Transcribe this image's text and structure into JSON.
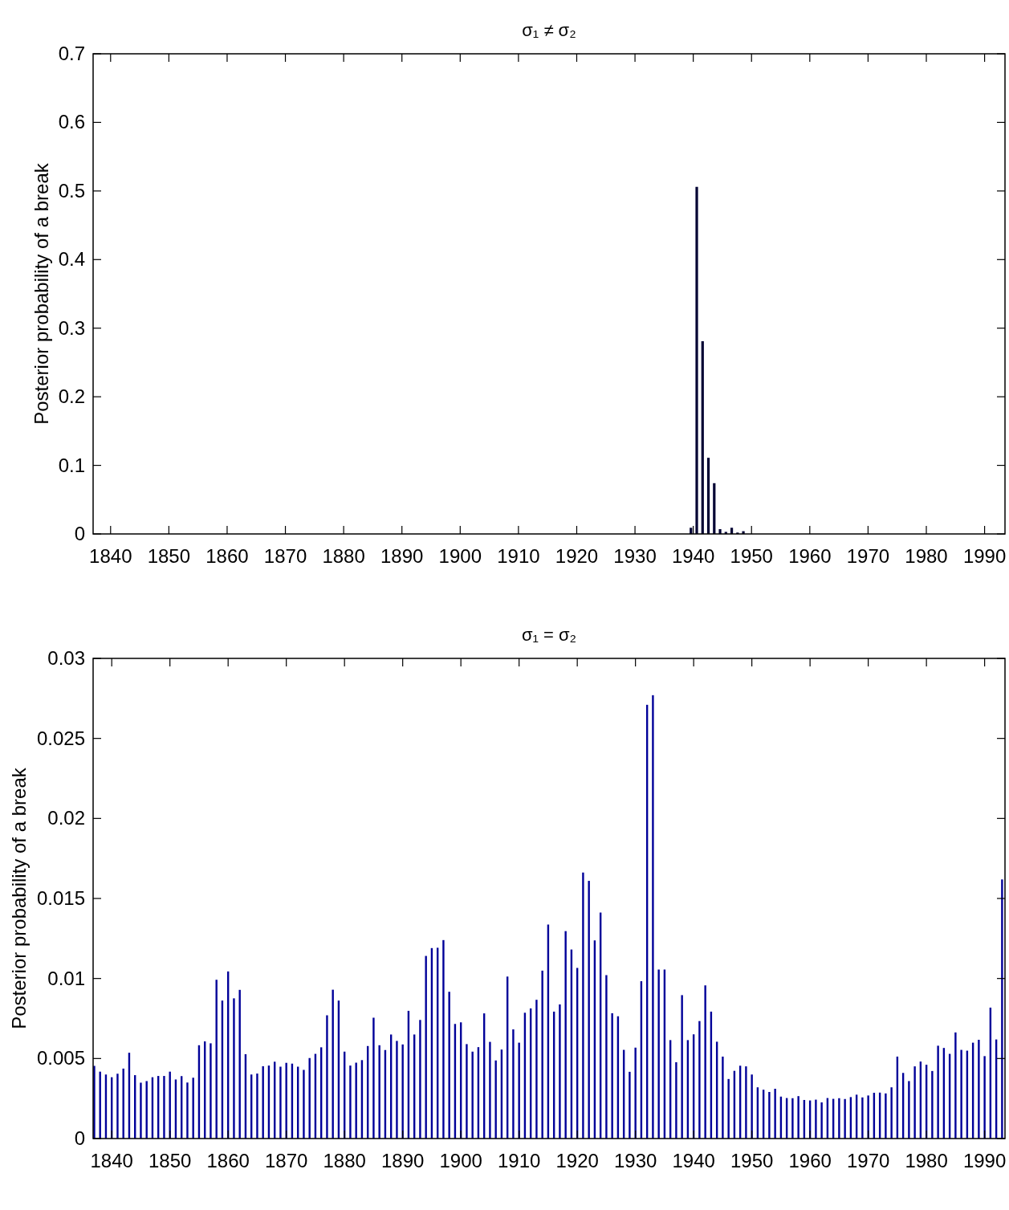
{
  "chart_data": [
    {
      "type": "bar",
      "title": "σ₁ ≠ σ₂",
      "ylabel": "Posterior probability of a break",
      "xlim": [
        1837,
        1993.5
      ],
      "xticks": [
        1840,
        1850,
        1860,
        1870,
        1880,
        1890,
        1900,
        1910,
        1920,
        1930,
        1940,
        1950,
        1960,
        1970,
        1980,
        1990
      ],
      "ylim": [
        0,
        0.7
      ],
      "yticks": [
        0,
        0.1,
        0.2,
        0.3,
        0.4,
        0.5,
        0.6,
        0.7
      ],
      "grid": false,
      "x": [
        1939.6,
        1940.6,
        1941.6,
        1942.6,
        1943.6,
        1944.6,
        1945.6,
        1946.6,
        1947.6,
        1948.6
      ],
      "series": [
        {
          "color": "#000033",
          "values": [
            0.009,
            0.506,
            0.281,
            0.111,
            0.074,
            0.007,
            0.003,
            0.009,
            0.002,
            0.004
          ]
        }
      ]
    },
    {
      "type": "bar",
      "title": "σ₁ = σ₂",
      "ylabel": "Posterior probability of a break",
      "xticks": [
        1840,
        1850,
        1860,
        1870,
        1880,
        1890,
        1900,
        1910,
        1920,
        1930,
        1940,
        1950,
        1960,
        1970,
        1980,
        1990
      ],
      "ylim": [
        0,
        0.03
      ],
      "yticks": [
        0,
        0.005,
        0.01,
        0.015,
        0.02,
        0.025,
        0.03
      ],
      "grid": false,
      "xlim": [
        1836.8,
        1993.5
      ],
      "x": [
        1837,
        1838,
        1839,
        1840,
        1841,
        1842,
        1843,
        1844,
        1845,
        1846,
        1847,
        1848,
        1849,
        1850,
        1851,
        1852,
        1853,
        1854,
        1855,
        1856,
        1857,
        1858,
        1859,
        1860,
        1861,
        1862,
        1863,
        1864,
        1865,
        1866,
        1867,
        1868,
        1869,
        1870,
        1871,
        1872,
        1873,
        1874,
        1875,
        1876,
        1877,
        1878,
        1879,
        1880,
        1881,
        1882,
        1883,
        1884,
        1885,
        1886,
        1887,
        1888,
        1889,
        1890,
        1891,
        1892,
        1893,
        1894,
        1895,
        1896,
        1897,
        1898,
        1899,
        1900,
        1901,
        1902,
        1903,
        1904,
        1905,
        1906,
        1907,
        1908,
        1909,
        1910,
        1911,
        1912,
        1913,
        1914,
        1915,
        1916,
        1917,
        1918,
        1919,
        1920,
        1921,
        1922,
        1923,
        1924,
        1925,
        1926,
        1927,
        1928,
        1929,
        1930,
        1931,
        1932,
        1933,
        1934,
        1935,
        1936,
        1937,
        1938,
        1939,
        1940,
        1941,
        1942,
        1943,
        1944,
        1945,
        1946,
        1947,
        1948,
        1949,
        1950,
        1951,
        1952,
        1953,
        1954,
        1955,
        1956,
        1957,
        1958,
        1959,
        1960,
        1961,
        1962,
        1963,
        1964,
        1965,
        1966,
        1967,
        1968,
        1969,
        1970,
        1971,
        1972,
        1973,
        1974,
        1975,
        1976,
        1977,
        1978,
        1979,
        1980,
        1981,
        1982,
        1983,
        1984,
        1985,
        1986,
        1987,
        1988,
        1989,
        1990,
        1991,
        1992,
        1993
      ],
      "series": [
        {
          "color": "#000099",
          "values": [
            0.00454,
            0.00418,
            0.004,
            0.00383,
            0.00405,
            0.00437,
            0.00536,
            0.00396,
            0.00349,
            0.00359,
            0.00383,
            0.00391,
            0.00391,
            0.00418,
            0.00369,
            0.0039,
            0.0035,
            0.0038,
            0.00583,
            0.00607,
            0.00595,
            0.00992,
            0.00862,
            0.01044,
            0.00876,
            0.00929,
            0.00527,
            0.004,
            0.00406,
            0.00452,
            0.00456,
            0.0048,
            0.00449,
            0.00473,
            0.00468,
            0.00449,
            0.00429,
            0.00503,
            0.00529,
            0.0057,
            0.0077,
            0.0093,
            0.00862,
            0.00543,
            0.00456,
            0.00474,
            0.0049,
            0.00578,
            0.00755,
            0.00583,
            0.00553,
            0.0065,
            0.0061,
            0.00588,
            0.00798,
            0.0065,
            0.00741,
            0.01141,
            0.0119,
            0.01192,
            0.0124,
            0.00917,
            0.00716,
            0.00726,
            0.0059,
            0.00543,
            0.00571,
            0.00782,
            0.00604,
            0.00488,
            0.00556,
            0.01012,
            0.00682,
            0.00599,
            0.00786,
            0.00813,
            0.00867,
            0.01049,
            0.01337,
            0.00793,
            0.00838,
            0.01296,
            0.01181,
            0.01066,
            0.01662,
            0.0161,
            0.01238,
            0.01412,
            0.01021,
            0.00783,
            0.00764,
            0.00554,
            0.00417,
            0.00568,
            0.00983,
            0.0271,
            0.0277,
            0.01056,
            0.01056,
            0.00615,
            0.00477,
            0.00896,
            0.00615,
            0.00651,
            0.00734,
            0.00957,
            0.00793,
            0.00605,
            0.00512,
            0.00372,
            0.00423,
            0.00455,
            0.00451,
            0.004,
            0.0032,
            0.00305,
            0.00291,
            0.00311,
            0.00262,
            0.00253,
            0.00252,
            0.00265,
            0.00241,
            0.00238,
            0.00243,
            0.00226,
            0.00253,
            0.00248,
            0.00252,
            0.00247,
            0.00259,
            0.00274,
            0.00257,
            0.00269,
            0.00286,
            0.00287,
            0.00282,
            0.0032,
            0.00512,
            0.0041,
            0.00359,
            0.00451,
            0.00481,
            0.00461,
            0.00422,
            0.0058,
            0.00566,
            0.00529,
            0.00663,
            0.00554,
            0.00549,
            0.00599,
            0.00617,
            0.00515,
            0.00818,
            0.00619,
            0.01619
          ]
        }
      ]
    }
  ]
}
